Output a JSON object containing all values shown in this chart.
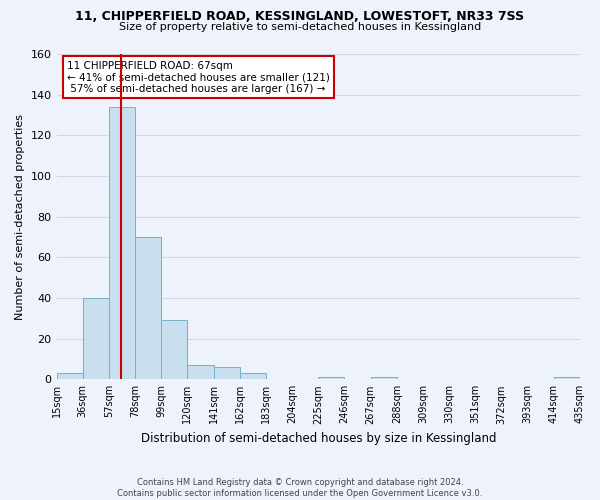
{
  "title_line1": "11, CHIPPERFIELD ROAD, KESSINGLAND, LOWESTOFT, NR33 7SS",
  "title_line2": "Size of property relative to semi-detached houses in Kessingland",
  "xlabel": "Distribution of semi-detached houses by size in Kessingland",
  "ylabel": "Number of semi-detached properties",
  "bin_edges": [
    15,
    36,
    57,
    78,
    99,
    120,
    141,
    162,
    183,
    204,
    225,
    246,
    267,
    288,
    309,
    330,
    351,
    372,
    393,
    414,
    435
  ],
  "bin_counts": [
    3,
    40,
    134,
    70,
    29,
    7,
    6,
    3,
    0,
    0,
    1,
    0,
    1,
    0,
    0,
    0,
    0,
    0,
    0,
    1
  ],
  "bar_color": "#c8dff0",
  "bar_edge_color": "#7aafc8",
  "property_size": 67,
  "vline_color": "#cc0000",
  "annotation_box_color": "#ffffff",
  "annotation_box_edge_color": "#cc0000",
  "annotation_title": "11 CHIPPERFIELD ROAD: 67sqm",
  "annotation_line1": "← 41% of semi-detached houses are smaller (121)",
  "annotation_line2": " 57% of semi-detached houses are larger (167) →",
  "ylim": [
    0,
    160
  ],
  "yticks": [
    0,
    20,
    40,
    60,
    80,
    100,
    120,
    140,
    160
  ],
  "tick_labels": [
    "15sqm",
    "36sqm",
    "57sqm",
    "78sqm",
    "99sqm",
    "120sqm",
    "141sqm",
    "162sqm",
    "183sqm",
    "204sqm",
    "225sqm",
    "246sqm",
    "267sqm",
    "288sqm",
    "309sqm",
    "330sqm",
    "351sqm",
    "372sqm",
    "393sqm",
    "414sqm",
    "435sqm"
  ],
  "footer_line1": "Contains HM Land Registry data © Crown copyright and database right 2024.",
  "footer_line2": "Contains public sector information licensed under the Open Government Licence v3.0.",
  "background_color": "#eef2fb",
  "grid_color": "#d0d8e8"
}
